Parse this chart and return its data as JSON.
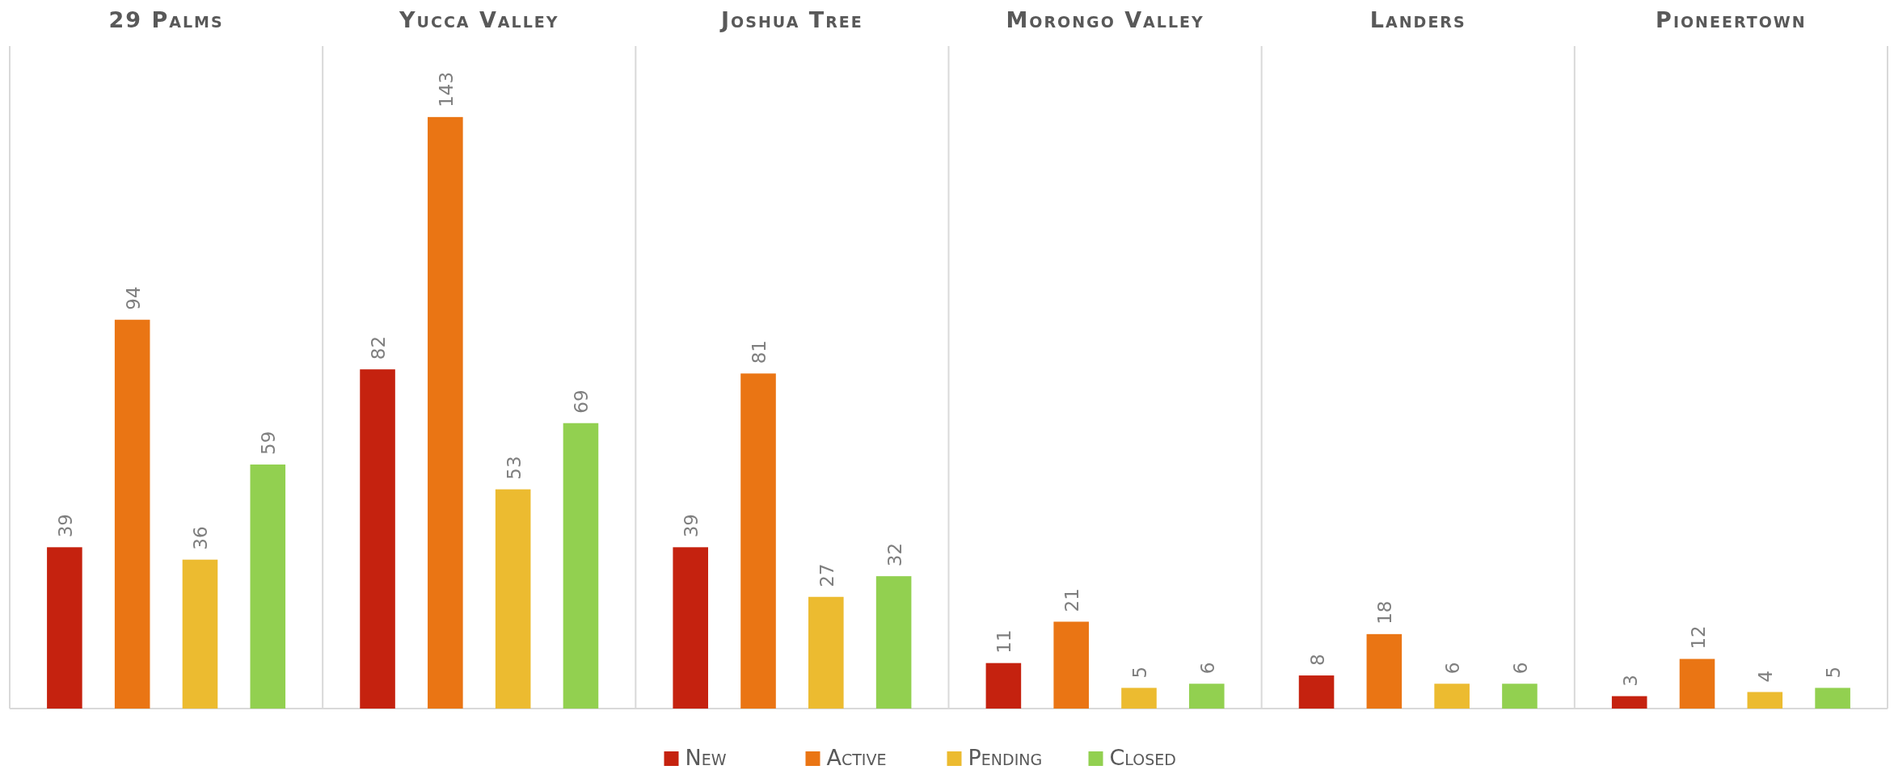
{
  "chart_data": {
    "type": "bar",
    "categories": [
      "29 Palms",
      "Yucca Valley",
      "Joshua Tree",
      "Morongo Valley",
      "Landers",
      "Pioneertown"
    ],
    "series": [
      {
        "name": "New",
        "color": "#c5220f",
        "values": [
          39,
          82,
          39,
          11,
          8,
          3
        ]
      },
      {
        "name": "Active",
        "color": "#ea7514",
        "values": [
          94,
          143,
          81,
          21,
          18,
          12
        ]
      },
      {
        "name": "Pending",
        "color": "#ecbb30",
        "values": [
          36,
          53,
          27,
          5,
          6,
          4
        ]
      },
      {
        "name": "Closed",
        "color": "#92d050",
        "values": [
          59,
          69,
          32,
          6,
          6,
          5
        ]
      }
    ],
    "data_labels": true,
    "legend": "bottom",
    "grid": false
  }
}
